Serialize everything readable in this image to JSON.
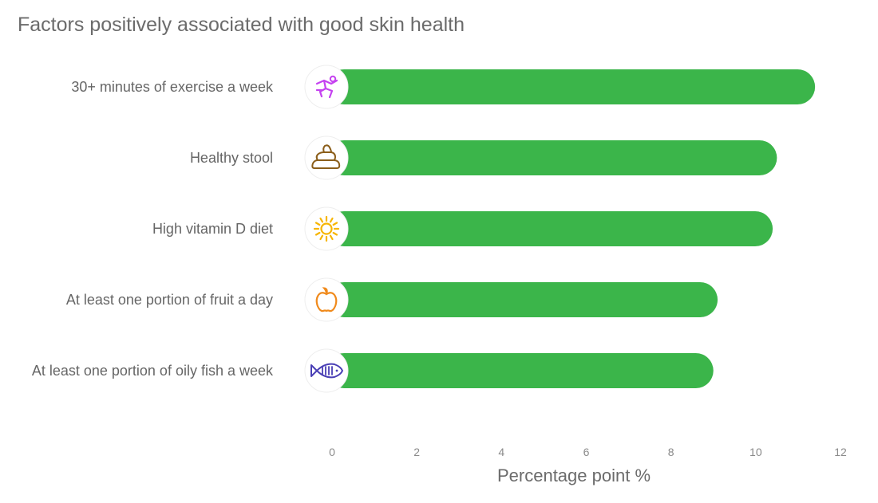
{
  "title": "Factors positively associated with good skin health",
  "colors": {
    "bar": "#3bb54a",
    "label": "#666666",
    "tick": "#8a8a8a"
  },
  "chart_data": {
    "type": "bar",
    "orientation": "horizontal",
    "title": "Factors positively associated with good skin health",
    "xlabel": "Percentage point %",
    "ylabel": "",
    "xlim": [
      0,
      12
    ],
    "xticks": [
      0,
      2,
      4,
      6,
      8,
      10,
      12
    ],
    "grid": false,
    "categories": [
      "30+ minutes of exercise a week",
      "Healthy stool",
      "High vitamin D diet",
      "At least one portion of fruit a day",
      "At least one portion of oily fish a week"
    ],
    "values": [
      11.4,
      10.5,
      10.4,
      9.1,
      9.0
    ],
    "icons": [
      {
        "name": "running-person-icon",
        "color": "#c542f0"
      },
      {
        "name": "stool-icon",
        "color": "#8b5e1a"
      },
      {
        "name": "sun-icon",
        "color": "#f7b500"
      },
      {
        "name": "apple-icon",
        "color": "#f08a1c"
      },
      {
        "name": "fish-icon",
        "color": "#4a3fb5"
      }
    ]
  }
}
